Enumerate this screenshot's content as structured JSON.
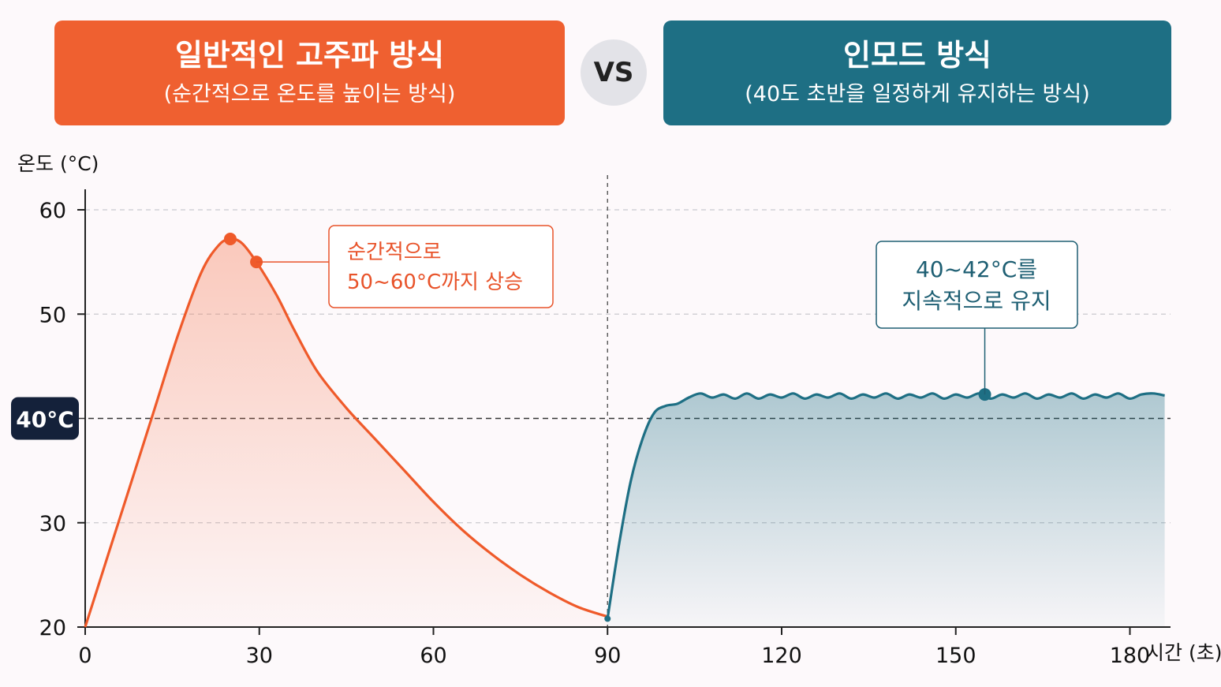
{
  "header": {
    "left": {
      "title": "일반적인 고주파 방식",
      "subtitle": "(순간적으로 온도를 높이는 방식)"
    },
    "vs": "VS",
    "right": {
      "title": "인모드 방식",
      "subtitle": "(40도 초반을 일정하게 유지하는 방식)"
    }
  },
  "colors": {
    "left_accent": "#ef6030",
    "right_accent": "#1e6f84",
    "reference_badge": "#14213a"
  },
  "chart_data": {
    "type": "line",
    "ylabel": "온도 (°C)",
    "xlabel": "시간 (초)",
    "xlim": [
      0,
      187
    ],
    "ylim": [
      20,
      60
    ],
    "x_ticks": [
      0,
      30,
      60,
      90,
      120,
      150,
      180
    ],
    "y_ticks": [
      20,
      30,
      50,
      60
    ],
    "grid": true,
    "reference_line": {
      "y": 40,
      "label": "40°C"
    },
    "divider_x": 90,
    "series": [
      {
        "x": [
          0,
          4,
          8,
          12,
          16,
          20,
          23,
          25,
          27,
          29.5,
          33,
          36,
          40,
          45,
          50,
          55,
          60,
          65,
          70,
          75,
          80,
          85,
          90
        ],
        "y": [
          20,
          27,
          34,
          41,
          48,
          54,
          56.6,
          57.2,
          56.8,
          55,
          51.8,
          48.5,
          44.5,
          41,
          38,
          35,
          32,
          29.3,
          27,
          25,
          23.3,
          21.9,
          21
        ],
        "color": "#ef5a2a",
        "markers": [
          {
            "x": 25,
            "y": 57.2
          },
          {
            "x": 29.5,
            "y": 55
          }
        ]
      },
      {
        "x": [
          90,
          92,
          94,
          96,
          98,
          100,
          102,
          104,
          106,
          108,
          110,
          112,
          114,
          116,
          118,
          120,
          122,
          124,
          126,
          128,
          130,
          132,
          134,
          136,
          138,
          140,
          142,
          144,
          146,
          148,
          150,
          152,
          154,
          156,
          158,
          160,
          162,
          164,
          166,
          168,
          170,
          172,
          174,
          176,
          178,
          180,
          182,
          184,
          186
        ],
        "y": [
          20.8,
          28,
          34,
          38,
          40.5,
          41.2,
          41.4,
          42,
          42.4,
          42,
          42.3,
          41.9,
          42.4,
          41.9,
          42.3,
          42,
          42.4,
          41.9,
          42.3,
          42,
          42.4,
          41.9,
          42.3,
          42,
          42.4,
          41.9,
          42.3,
          42,
          42.4,
          41.9,
          42.3,
          42,
          42.4,
          41.9,
          42.3,
          42,
          42.4,
          41.9,
          42.3,
          42,
          42.4,
          41.9,
          42.3,
          42,
          42.4,
          41.9,
          42.3,
          42.4,
          42.2
        ],
        "color": "#1e6f84",
        "markers": [
          {
            "x": 155,
            "y": 42.3
          }
        ]
      }
    ],
    "annotations": [
      {
        "lines": [
          "순간적으로",
          "50~60°C까지 상승"
        ],
        "color": "#e8532a"
      },
      {
        "lines": [
          "40~42°C를",
          "지속적으로 유지"
        ],
        "color": "#1e5f73"
      }
    ]
  }
}
